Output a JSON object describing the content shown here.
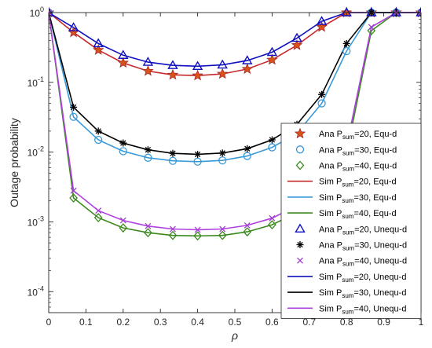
{
  "chart_data": {
    "type": "line",
    "xlabel": "ρ",
    "ylabel": "Outage probability",
    "xlim": [
      0,
      1
    ],
    "ylim": [
      5e-05,
      1
    ],
    "yscale": "log",
    "grid": false,
    "legend_position": "right",
    "x_ticks": [
      "0",
      "0.1",
      "0.2",
      "0.3",
      "0.4",
      "0.5",
      "0.6",
      "0.7",
      "0.8",
      "0.9",
      "1"
    ],
    "y_ticks": [
      {
        "value": 1,
        "base": "10",
        "exp": "0"
      },
      {
        "value": 0.1,
        "base": "10",
        "exp": "-1"
      },
      {
        "value": 0.01,
        "base": "10",
        "exp": "-2"
      },
      {
        "value": 0.001,
        "base": "10",
        "exp": "-3"
      },
      {
        "value": 0.0001,
        "base": "10",
        "exp": "-4"
      }
    ],
    "x": [
      0,
      0.0667,
      0.1333,
      0.2,
      0.2667,
      0.3333,
      0.4,
      0.4667,
      0.5333,
      0.6,
      0.6667,
      0.7333,
      0.8,
      0.8667,
      0.9333,
      1
    ],
    "series": [
      {
        "name": "Ana P_sum=20, Equ-d",
        "kind": "marker",
        "marker": "star",
        "color": "#a52a2a",
        "fill": "#d95319",
        "values": [
          1,
          0.52,
          0.29,
          0.19,
          0.145,
          0.128,
          0.125,
          0.132,
          0.155,
          0.21,
          0.34,
          0.62,
          1,
          1,
          1,
          1
        ]
      },
      {
        "name": "Ana P_sum=30, Equ-d",
        "kind": "marker",
        "marker": "circle",
        "color": "#3a9ad9",
        "values": [
          1,
          0.032,
          0.015,
          0.0103,
          0.0083,
          0.0075,
          0.0073,
          0.0076,
          0.0088,
          0.0117,
          0.0185,
          0.05,
          0.28,
          1,
          1,
          1
        ]
      },
      {
        "name": "Ana P_sum=40, Equ-d",
        "kind": "marker",
        "marker": "diamond",
        "color": "#3b8a1e",
        "values": [
          1,
          0.0022,
          0.00115,
          0.00082,
          0.0007,
          0.00064,
          0.00063,
          0.00064,
          0.00072,
          0.00091,
          0.00135,
          0.0026,
          0.0095,
          0.55,
          1,
          1
        ]
      },
      {
        "name": "Sim P_sum=20, Equ-d",
        "kind": "line",
        "color": "#c6282b",
        "values": [
          1,
          0.52,
          0.29,
          0.19,
          0.145,
          0.128,
          0.125,
          0.132,
          0.155,
          0.21,
          0.34,
          0.62,
          1,
          1,
          1,
          1
        ]
      },
      {
        "name": "Sim P_sum=30, Equ-d",
        "kind": "line",
        "color": "#3a9ad9",
        "values": [
          1,
          0.032,
          0.015,
          0.0103,
          0.0083,
          0.0075,
          0.0073,
          0.0076,
          0.0088,
          0.0117,
          0.0185,
          0.05,
          0.28,
          1,
          1,
          1
        ]
      },
      {
        "name": "Sim P_sum=40, Equ-d",
        "kind": "line",
        "color": "#3b8a1e",
        "values": [
          1,
          0.0022,
          0.00115,
          0.00082,
          0.0007,
          0.00064,
          0.00063,
          0.00064,
          0.00072,
          0.00091,
          0.00135,
          0.0026,
          0.0095,
          0.55,
          1,
          1
        ]
      },
      {
        "name": "Ana P_sum=20, Unequ-d",
        "kind": "marker",
        "marker": "triangle",
        "color": "#1010c0",
        "values": [
          1,
          0.61,
          0.36,
          0.245,
          0.195,
          0.175,
          0.17,
          0.178,
          0.205,
          0.27,
          0.43,
          0.75,
          1,
          1,
          1,
          1
        ]
      },
      {
        "name": "Ana P_sum=30, Unequ-d",
        "kind": "marker",
        "marker": "asterisk",
        "color": "#000000",
        "values": [
          1,
          0.044,
          0.02,
          0.0135,
          0.0108,
          0.0096,
          0.0093,
          0.0097,
          0.0112,
          0.015,
          0.025,
          0.067,
          0.36,
          1,
          1,
          1
        ]
      },
      {
        "name": "Ana P_sum=40, Unequ-d",
        "kind": "marker",
        "marker": "x",
        "color": "#a040d0",
        "values": [
          1,
          0.0028,
          0.00145,
          0.00105,
          0.00087,
          0.00079,
          0.00077,
          0.00079,
          0.00089,
          0.00113,
          0.0017,
          0.0033,
          0.012,
          0.62,
          1,
          1
        ]
      },
      {
        "name": "Sim P_sum=20, Unequ-d",
        "kind": "line",
        "color": "#1010c0",
        "values": [
          1,
          0.61,
          0.36,
          0.245,
          0.195,
          0.175,
          0.17,
          0.178,
          0.205,
          0.27,
          0.43,
          0.75,
          1,
          1,
          1,
          1
        ]
      },
      {
        "name": "Sim P_sum=30, Unequ-d",
        "kind": "line",
        "color": "#000000",
        "values": [
          1,
          0.044,
          0.02,
          0.0135,
          0.0108,
          0.0096,
          0.0093,
          0.0097,
          0.0112,
          0.015,
          0.025,
          0.067,
          0.36,
          1,
          1,
          1
        ]
      },
      {
        "name": "Sim P_sum=40, Unequ-d",
        "kind": "line",
        "color": "#b040e0",
        "values": [
          1,
          0.0028,
          0.00145,
          0.00105,
          0.00087,
          0.00079,
          0.00077,
          0.00079,
          0.00089,
          0.00113,
          0.0017,
          0.0033,
          0.012,
          0.62,
          1,
          1
        ]
      }
    ],
    "legend": [
      {
        "prefix": "Ana P",
        "sub": "sum",
        "suffix": "=20, Equ-d"
      },
      {
        "prefix": "Ana P",
        "sub": "sum",
        "suffix": "=30, Equ-d"
      },
      {
        "prefix": "Ana P",
        "sub": "sum",
        "suffix": "=40, Equ-d"
      },
      {
        "prefix": "Sim P",
        "sub": "sum",
        "suffix": "=20, Equ-d"
      },
      {
        "prefix": "Sim P",
        "sub": "sum",
        "suffix": "=30, Equ-d"
      },
      {
        "prefix": "Sim P",
        "sub": "sum",
        "suffix": "=40, Equ-d"
      },
      {
        "prefix": "Ana P",
        "sub": "sum",
        "suffix": "=20, Unequ-d"
      },
      {
        "prefix": "Ana P",
        "sub": "sum",
        "suffix": "=30, Unequ-d"
      },
      {
        "prefix": "Ana P",
        "sub": "sum",
        "suffix": "=40, Unequ-d"
      },
      {
        "prefix": "Sim P",
        "sub": "sum",
        "suffix": "=20, Unequ-d"
      },
      {
        "prefix": "Sim P",
        "sub": "sum",
        "suffix": "=30, Unequ-d"
      },
      {
        "prefix": "Sim P",
        "sub": "sum",
        "suffix": "=40, Unequ-d"
      }
    ]
  }
}
